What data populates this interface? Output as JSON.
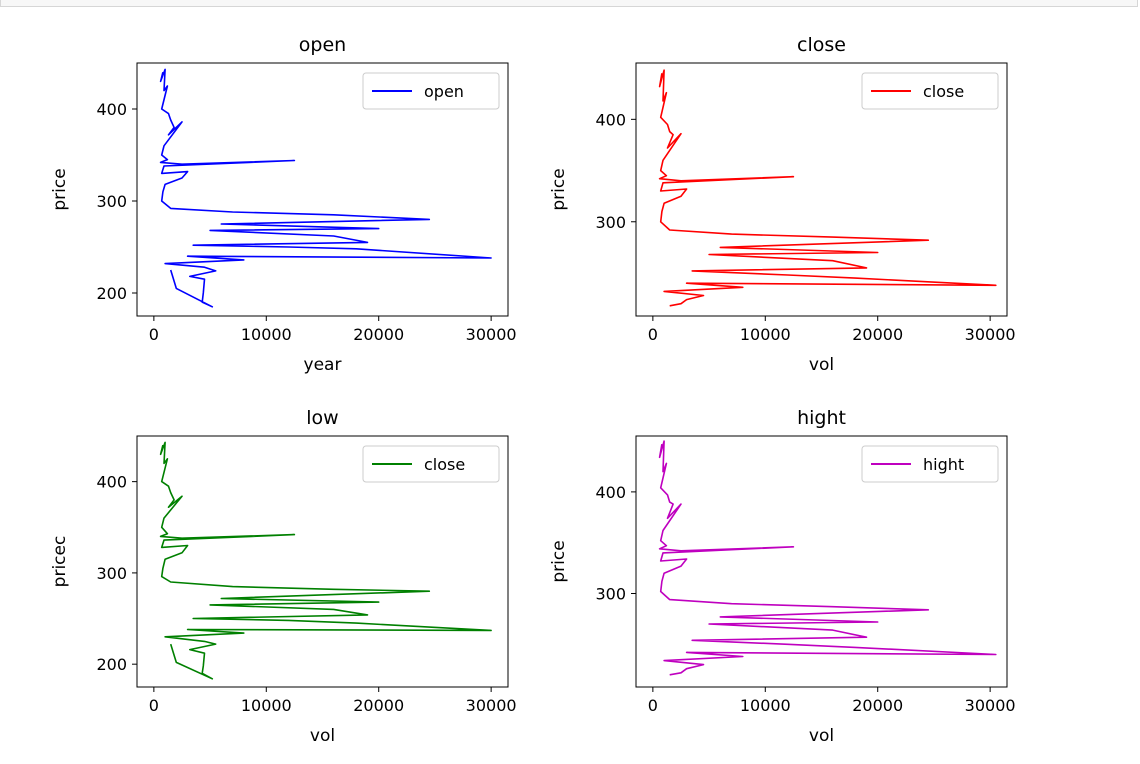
{
  "chart_data": [
    {
      "type": "line",
      "title": "open",
      "xlabel": "year",
      "ylabel": "price",
      "color": "#0000ff",
      "xlim": [
        -1500,
        31500
      ],
      "ylim": [
        175,
        450
      ],
      "xticks": [
        0,
        10000,
        20000,
        30000
      ],
      "yticks": [
        200,
        300,
        400
      ],
      "legend": {
        "position": "top-right",
        "label": "open"
      },
      "series": [
        {
          "name": "open",
          "x": [
            800,
            600,
            1000,
            900,
            1200,
            700,
            1300,
            1500,
            1800,
            1300,
            2500,
            900,
            700,
            1200,
            600,
            2500,
            12500,
            900,
            700,
            3000,
            2500,
            1000,
            800,
            700,
            1500,
            7000,
            16000,
            24500,
            6000,
            20000,
            5000,
            16000,
            19000,
            3500,
            12000,
            18000,
            30000,
            3000,
            8000,
            1000,
            4500,
            5500,
            3200,
            4500,
            4400,
            4300,
            5200,
            2000,
            1500
          ],
          "y": [
            440,
            430,
            443,
            420,
            425,
            400,
            395,
            388,
            380,
            372,
            386,
            360,
            350,
            345,
            342,
            340,
            344,
            338,
            330,
            332,
            325,
            318,
            310,
            300,
            292,
            288,
            285,
            280,
            275,
            270,
            268,
            262,
            255,
            252,
            250,
            248,
            238,
            240,
            236,
            232,
            228,
            224,
            218,
            215,
            200,
            190,
            185,
            205,
            225
          ]
        }
      ]
    },
    {
      "type": "line",
      "title": "close",
      "xlabel": "vol",
      "ylabel": "price",
      "color": "#ff0000",
      "xlim": [
        -1500,
        31500
      ],
      "ylim": [
        208,
        455
      ],
      "xticks": [
        0,
        10000,
        20000,
        30000
      ],
      "yticks": [
        300,
        400
      ],
      "legend": {
        "position": "top-right",
        "label": "close"
      },
      "series": [
        {
          "name": "close",
          "x": [
            800,
            600,
            1000,
            900,
            1200,
            700,
            1300,
            1500,
            1800,
            1300,
            2500,
            900,
            700,
            1200,
            600,
            2500,
            12500,
            900,
            700,
            3000,
            2500,
            1000,
            800,
            700,
            1500,
            7000,
            16000,
            24500,
            6000,
            20000,
            5000,
            16000,
            19000,
            3500,
            12000,
            18000,
            30500,
            3000,
            8000,
            1000,
            4500,
            3000,
            2500,
            1500
          ],
          "y": [
            445,
            432,
            448,
            418,
            426,
            402,
            395,
            388,
            385,
            372,
            386,
            360,
            350,
            345,
            342,
            340,
            344,
            338,
            330,
            332,
            325,
            318,
            310,
            300,
            292,
            288,
            285,
            282,
            275,
            270,
            268,
            262,
            255,
            252,
            248,
            245,
            238,
            240,
            236,
            232,
            228,
            224,
            220,
            218
          ]
        }
      ]
    },
    {
      "type": "line",
      "title": "low",
      "xlabel": "vol",
      "ylabel": "pricec",
      "color": "#008000",
      "xlim": [
        -1500,
        31500
      ],
      "ylim": [
        175,
        450
      ],
      "xticks": [
        0,
        10000,
        20000,
        30000
      ],
      "yticks": [
        200,
        300,
        400
      ],
      "legend": {
        "position": "top-right",
        "label": "close"
      },
      "series": [
        {
          "name": "close",
          "x": [
            800,
            600,
            1000,
            900,
            1200,
            700,
            1300,
            1500,
            1800,
            1300,
            2500,
            900,
            700,
            1200,
            600,
            2500,
            12500,
            900,
            700,
            3000,
            2500,
            1000,
            800,
            700,
            1500,
            7000,
            16000,
            24500,
            6000,
            20000,
            5000,
            16000,
            19000,
            3500,
            12000,
            18000,
            30000,
            3000,
            8000,
            1000,
            4500,
            5500,
            3200,
            4500,
            4400,
            4300,
            5200,
            2000,
            1500
          ],
          "y": [
            440,
            430,
            443,
            420,
            425,
            400,
            395,
            388,
            380,
            372,
            384,
            360,
            350,
            343,
            340,
            338,
            342,
            336,
            328,
            330,
            322,
            315,
            305,
            296,
            290,
            285,
            282,
            280,
            272,
            268,
            265,
            260,
            254,
            250,
            248,
            245,
            237,
            238,
            234,
            230,
            225,
            222,
            216,
            212,
            198,
            190,
            184,
            202,
            222
          ]
        }
      ]
    },
    {
      "type": "line",
      "title": "hight",
      "xlabel": "vol",
      "ylabel": "price",
      "color": "#bf00bf",
      "xlim": [
        -1500,
        31500
      ],
      "ylim": [
        208,
        455
      ],
      "xticks": [
        0,
        10000,
        20000,
        30000
      ],
      "yticks": [
        300,
        400
      ],
      "legend": {
        "position": "top-right",
        "label": "hight"
      },
      "series": [
        {
          "name": "hight",
          "x": [
            800,
            600,
            1000,
            900,
            1200,
            700,
            1300,
            1500,
            1800,
            1300,
            2500,
            900,
            700,
            1200,
            600,
            2500,
            12500,
            900,
            700,
            3000,
            2500,
            1000,
            800,
            700,
            1500,
            7000,
            16000,
            24500,
            6000,
            20000,
            5000,
            16000,
            19000,
            3500,
            12000,
            18000,
            30500,
            3000,
            8000,
            1000,
            4500,
            3000,
            2500,
            1500
          ],
          "y": [
            447,
            434,
            450,
            420,
            428,
            404,
            397,
            390,
            388,
            374,
            388,
            362,
            352,
            347,
            344,
            342,
            346,
            340,
            332,
            334,
            327,
            320,
            312,
            302,
            294,
            290,
            287,
            284,
            277,
            272,
            270,
            264,
            257,
            254,
            250,
            247,
            240,
            242,
            238,
            234,
            230,
            226,
            222,
            220
          ]
        }
      ]
    }
  ]
}
